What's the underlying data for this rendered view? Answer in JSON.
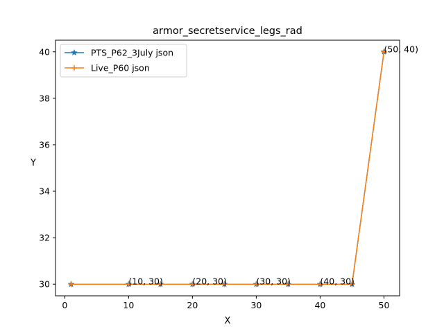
{
  "chart_data": {
    "type": "line",
    "title": "armor_secretservice_legs_rad",
    "xlabel": "X",
    "ylabel": "Y",
    "xlim": [
      -1.45,
      52.45
    ],
    "ylim": [
      29.5,
      40.5
    ],
    "xticks": [
      0,
      10,
      20,
      30,
      40,
      50
    ],
    "yticks": [
      30,
      32,
      34,
      36,
      38,
      40
    ],
    "grid": false,
    "legend_position": "upper left",
    "series": [
      {
        "name": "PTS_P62_3July json",
        "color": "#1f77b4",
        "marker": "star",
        "x": [
          1,
          10,
          15,
          20,
          25,
          30,
          35,
          40,
          45,
          50
        ],
        "y": [
          30,
          30,
          30,
          30,
          30,
          30,
          30,
          30,
          30,
          40
        ]
      },
      {
        "name": "Live_P60 json",
        "color": "#ff7f0e",
        "marker": "plus",
        "x": [
          1,
          10,
          15,
          20,
          25,
          30,
          35,
          40,
          45,
          50
        ],
        "y": [
          30,
          30,
          30,
          30,
          30,
          30,
          30,
          30,
          30,
          40
        ]
      }
    ],
    "annotations": [
      {
        "text": "(10, 30)",
        "x": 10,
        "y": 30
      },
      {
        "text": "(20, 30)",
        "x": 20,
        "y": 30
      },
      {
        "text": "(30, 30)",
        "x": 30,
        "y": 30
      },
      {
        "text": "(40, 30)",
        "x": 40,
        "y": 30
      },
      {
        "text": "(50, 40)",
        "x": 50,
        "y": 40
      }
    ]
  }
}
